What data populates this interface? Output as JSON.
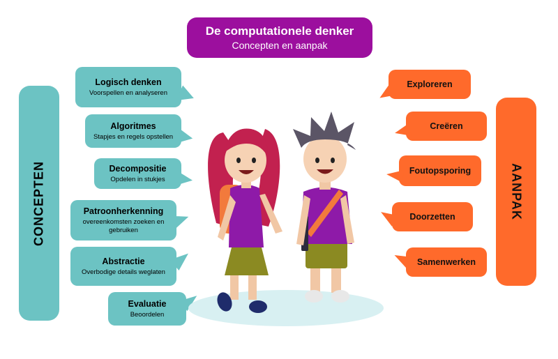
{
  "header": {
    "title": "De computationele denker",
    "subtitle": "Concepten en aanpak"
  },
  "left_bar": {
    "label": "CONCEPTEN"
  },
  "right_bar": {
    "label": "AANPAK"
  },
  "concepts": [
    {
      "title": "Logisch denken",
      "subtitle": "Voorspellen en analyseren"
    },
    {
      "title": "Algoritmes",
      "subtitle": "Stapjes en regels opstellen"
    },
    {
      "title": "Decompositie",
      "subtitle": "Opdelen in stukjes"
    },
    {
      "title": "Patroonherkenning",
      "subtitle": "overeenkomsten zoeken en gebruiken"
    },
    {
      "title": "Abstractie",
      "subtitle": "Overbodige details weglaten"
    },
    {
      "title": "Evaluatie",
      "subtitle": "Beoordelen"
    }
  ],
  "approach": [
    {
      "title": "Exploreren"
    },
    {
      "title": "Creëren"
    },
    {
      "title": "Foutopsporing"
    },
    {
      "title": "Doorzetten"
    },
    {
      "title": "Samenwerken"
    }
  ],
  "colors": {
    "header": "#9c0f9e",
    "concepts": "#6cc3c3",
    "approach": "#ff6a2b",
    "shirt": "#8e1aa8",
    "shadow": "#d8f0f2"
  }
}
